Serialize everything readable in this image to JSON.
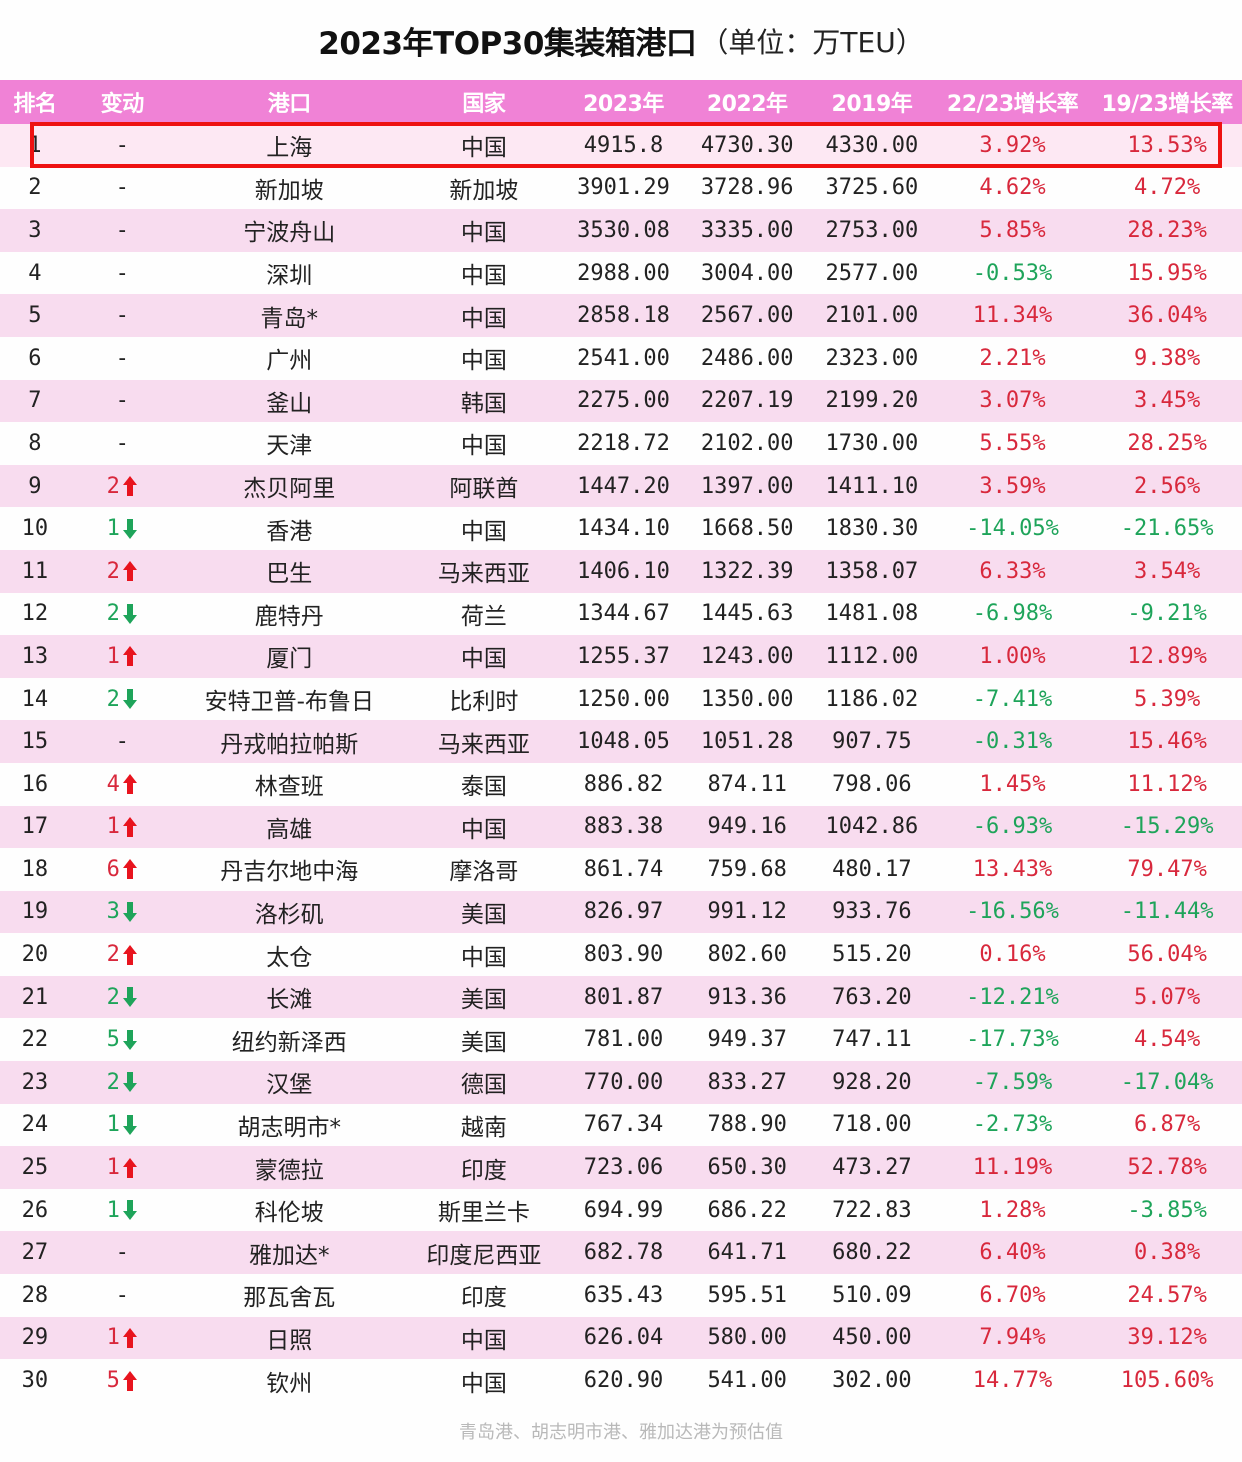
{
  "title": {
    "main": "2023年TOP30集装箱港口",
    "unit": "（单位：万TEU）"
  },
  "colors": {
    "header_bg": "#f082d6",
    "alt_row_bg": "#f8dcef",
    "positive": "#d8283c",
    "negative": "#1ea45a",
    "highlight_border": "#ee1111"
  },
  "header": {
    "rank": "排名",
    "change": "变动",
    "port": "港口",
    "country": "国家",
    "y2023": "2023年",
    "y2022": "2022年",
    "y2019": "2019年",
    "growth_22_23": "22/23增长率",
    "growth_19_23": "19/23增长率"
  },
  "rows": [
    {
      "rank": "1",
      "chg": "-",
      "dir": "none",
      "port": "上海",
      "country": "中国",
      "y2023": "4915.8",
      "y2022": "4730.30",
      "y2019": "4330.00",
      "g1": "3.92%",
      "g2": "13.53%"
    },
    {
      "rank": "2",
      "chg": "-",
      "dir": "none",
      "port": "新加坡",
      "country": "新加坡",
      "y2023": "3901.29",
      "y2022": "3728.96",
      "y2019": "3725.60",
      "g1": "4.62%",
      "g2": "4.72%"
    },
    {
      "rank": "3",
      "chg": "-",
      "dir": "none",
      "port": "宁波舟山",
      "country": "中国",
      "y2023": "3530.08",
      "y2022": "3335.00",
      "y2019": "2753.00",
      "g1": "5.85%",
      "g2": "28.23%"
    },
    {
      "rank": "4",
      "chg": "-",
      "dir": "none",
      "port": "深圳",
      "country": "中国",
      "y2023": "2988.00",
      "y2022": "3004.00",
      "y2019": "2577.00",
      "g1": "-0.53%",
      "g2": "15.95%"
    },
    {
      "rank": "5",
      "chg": "-",
      "dir": "none",
      "port": "青岛*",
      "country": "中国",
      "y2023": "2858.18",
      "y2022": "2567.00",
      "y2019": "2101.00",
      "g1": "11.34%",
      "g2": "36.04%"
    },
    {
      "rank": "6",
      "chg": "-",
      "dir": "none",
      "port": "广州",
      "country": "中国",
      "y2023": "2541.00",
      "y2022": "2486.00",
      "y2019": "2323.00",
      "g1": "2.21%",
      "g2": "9.38%"
    },
    {
      "rank": "7",
      "chg": "-",
      "dir": "none",
      "port": "釜山",
      "country": "韩国",
      "y2023": "2275.00",
      "y2022": "2207.19",
      "y2019": "2199.20",
      "g1": "3.07%",
      "g2": "3.45%"
    },
    {
      "rank": "8",
      "chg": "-",
      "dir": "none",
      "port": "天津",
      "country": "中国",
      "y2023": "2218.72",
      "y2022": "2102.00",
      "y2019": "1730.00",
      "g1": "5.55%",
      "g2": "28.25%"
    },
    {
      "rank": "9",
      "chg": "2",
      "dir": "up",
      "port": "杰贝阿里",
      "country": "阿联酋",
      "y2023": "1447.20",
      "y2022": "1397.00",
      "y2019": "1411.10",
      "g1": "3.59%",
      "g2": "2.56%"
    },
    {
      "rank": "10",
      "chg": "1",
      "dir": "down",
      "port": "香港",
      "country": "中国",
      "y2023": "1434.10",
      "y2022": "1668.50",
      "y2019": "1830.30",
      "g1": "-14.05%",
      "g2": "-21.65%"
    },
    {
      "rank": "11",
      "chg": "2",
      "dir": "up",
      "port": "巴生",
      "country": "马来西亚",
      "y2023": "1406.10",
      "y2022": "1322.39",
      "y2019": "1358.07",
      "g1": "6.33%",
      "g2": "3.54%"
    },
    {
      "rank": "12",
      "chg": "2",
      "dir": "down",
      "port": "鹿特丹",
      "country": "荷兰",
      "y2023": "1344.67",
      "y2022": "1445.63",
      "y2019": "1481.08",
      "g1": "-6.98%",
      "g2": "-9.21%"
    },
    {
      "rank": "13",
      "chg": "1",
      "dir": "up",
      "port": "厦门",
      "country": "中国",
      "y2023": "1255.37",
      "y2022": "1243.00",
      "y2019": "1112.00",
      "g1": "1.00%",
      "g2": "12.89%"
    },
    {
      "rank": "14",
      "chg": "2",
      "dir": "down",
      "port": "安特卫普-布鲁日",
      "country": "比利时",
      "y2023": "1250.00",
      "y2022": "1350.00",
      "y2019": "1186.02",
      "g1": "-7.41%",
      "g2": "5.39%"
    },
    {
      "rank": "15",
      "chg": "-",
      "dir": "none",
      "port": "丹戎帕拉帕斯",
      "country": "马来西亚",
      "y2023": "1048.05",
      "y2022": "1051.28",
      "y2019": "907.75",
      "g1": "-0.31%",
      "g2": "15.46%"
    },
    {
      "rank": "16",
      "chg": "4",
      "dir": "up",
      "port": "林查班",
      "country": "泰国",
      "y2023": "886.82",
      "y2022": "874.11",
      "y2019": "798.06",
      "g1": "1.45%",
      "g2": "11.12%"
    },
    {
      "rank": "17",
      "chg": "1",
      "dir": "up",
      "port": "高雄",
      "country": "中国",
      "y2023": "883.38",
      "y2022": "949.16",
      "y2019": "1042.86",
      "g1": "-6.93%",
      "g2": "-15.29%"
    },
    {
      "rank": "18",
      "chg": "6",
      "dir": "up",
      "port": "丹吉尔地中海",
      "country": "摩洛哥",
      "y2023": "861.74",
      "y2022": "759.68",
      "y2019": "480.17",
      "g1": "13.43%",
      "g2": "79.47%"
    },
    {
      "rank": "19",
      "chg": "3",
      "dir": "down",
      "port": "洛杉矶",
      "country": "美国",
      "y2023": "826.97",
      "y2022": "991.12",
      "y2019": "933.76",
      "g1": "-16.56%",
      "g2": "-11.44%"
    },
    {
      "rank": "20",
      "chg": "2",
      "dir": "up",
      "port": "太仓",
      "country": "中国",
      "y2023": "803.90",
      "y2022": "802.60",
      "y2019": "515.20",
      "g1": "0.16%",
      "g2": "56.04%"
    },
    {
      "rank": "21",
      "chg": "2",
      "dir": "down",
      "port": "长滩",
      "country": "美国",
      "y2023": "801.87",
      "y2022": "913.36",
      "y2019": "763.20",
      "g1": "-12.21%",
      "g2": "5.07%"
    },
    {
      "rank": "22",
      "chg": "5",
      "dir": "down",
      "port": "纽约新泽西",
      "country": "美国",
      "y2023": "781.00",
      "y2022": "949.37",
      "y2019": "747.11",
      "g1": "-17.73%",
      "g2": "4.54%"
    },
    {
      "rank": "23",
      "chg": "2",
      "dir": "down",
      "port": "汉堡",
      "country": "德国",
      "y2023": "770.00",
      "y2022": "833.27",
      "y2019": "928.20",
      "g1": "-7.59%",
      "g2": "-17.04%"
    },
    {
      "rank": "24",
      "chg": "1",
      "dir": "down",
      "port": "胡志明市*",
      "country": "越南",
      "y2023": "767.34",
      "y2022": "788.90",
      "y2019": "718.00",
      "g1": "-2.73%",
      "g2": "6.87%"
    },
    {
      "rank": "25",
      "chg": "1",
      "dir": "up",
      "port": "蒙德拉",
      "country": "印度",
      "y2023": "723.06",
      "y2022": "650.30",
      "y2019": "473.27",
      "g1": "11.19%",
      "g2": "52.78%"
    },
    {
      "rank": "26",
      "chg": "1",
      "dir": "down",
      "port": "科伦坡",
      "country": "斯里兰卡",
      "y2023": "694.99",
      "y2022": "686.22",
      "y2019": "722.83",
      "g1": "1.28%",
      "g2": "-3.85%"
    },
    {
      "rank": "27",
      "chg": "-",
      "dir": "none",
      "port": "雅加达*",
      "country": "印度尼西亚",
      "y2023": "682.78",
      "y2022": "641.71",
      "y2019": "680.22",
      "g1": "6.40%",
      "g2": "0.38%"
    },
    {
      "rank": "28",
      "chg": "-",
      "dir": "none",
      "port": "那瓦舍瓦",
      "country": "印度",
      "y2023": "635.43",
      "y2022": "595.51",
      "y2019": "510.09",
      "g1": "6.70%",
      "g2": "24.57%"
    },
    {
      "rank": "29",
      "chg": "1",
      "dir": "up",
      "port": "日照",
      "country": "中国",
      "y2023": "626.04",
      "y2022": "580.00",
      "y2019": "450.00",
      "g1": "7.94%",
      "g2": "39.12%"
    },
    {
      "rank": "30",
      "chg": "5",
      "dir": "up",
      "port": "钦州",
      "country": "中国",
      "y2023": "620.90",
      "y2022": "541.00",
      "y2019": "302.00",
      "g1": "14.77%",
      "g2": "105.60%"
    }
  ],
  "footnote": "青岛港、胡志明市港、雅加达港为预估值",
  "chart_data": {
    "type": "table",
    "title": "2023年TOP30集装箱港口（单位：万TEU）",
    "columns": [
      "排名",
      "变动",
      "港口",
      "国家",
      "2023年",
      "2022年",
      "2019年",
      "22/23增长率",
      "19/23增长率"
    ],
    "rows": [
      [
        1,
        "-",
        "上海",
        "中国",
        4915.8,
        4730.3,
        4330.0,
        "3.92%",
        "13.53%"
      ],
      [
        2,
        "-",
        "新加坡",
        "新加坡",
        3901.29,
        3728.96,
        3725.6,
        "4.62%",
        "4.72%"
      ],
      [
        3,
        "-",
        "宁波舟山",
        "中国",
        3530.08,
        3335.0,
        2753.0,
        "5.85%",
        "28.23%"
      ],
      [
        4,
        "-",
        "深圳",
        "中国",
        2988.0,
        3004.0,
        2577.0,
        "-0.53%",
        "15.95%"
      ],
      [
        5,
        "-",
        "青岛*",
        "中国",
        2858.18,
        2567.0,
        2101.0,
        "11.34%",
        "36.04%"
      ],
      [
        6,
        "-",
        "广州",
        "中国",
        2541.0,
        2486.0,
        2323.0,
        "2.21%",
        "9.38%"
      ],
      [
        7,
        "-",
        "釜山",
        "韩国",
        2275.0,
        2207.19,
        2199.2,
        "3.07%",
        "3.45%"
      ],
      [
        8,
        "-",
        "天津",
        "中国",
        2218.72,
        2102.0,
        1730.0,
        "5.55%",
        "28.25%"
      ],
      [
        9,
        "+2",
        "杰贝阿里",
        "阿联酋",
        1447.2,
        1397.0,
        1411.1,
        "3.59%",
        "2.56%"
      ],
      [
        10,
        "-1",
        "香港",
        "中国",
        1434.1,
        1668.5,
        1830.3,
        "-14.05%",
        "-21.65%"
      ],
      [
        11,
        "+2",
        "巴生",
        "马来西亚",
        1406.1,
        1322.39,
        1358.07,
        "6.33%",
        "3.54%"
      ],
      [
        12,
        "-2",
        "鹿特丹",
        "荷兰",
        1344.67,
        1445.63,
        1481.08,
        "-6.98%",
        "-9.21%"
      ],
      [
        13,
        "+1",
        "厦门",
        "中国",
        1255.37,
        1243.0,
        1112.0,
        "1.00%",
        "12.89%"
      ],
      [
        14,
        "-2",
        "安特卫普-布鲁日",
        "比利时",
        1250.0,
        1350.0,
        1186.02,
        "-7.41%",
        "5.39%"
      ],
      [
        15,
        "-",
        "丹戎帕拉帕斯",
        "马来西亚",
        1048.05,
        1051.28,
        907.75,
        "-0.31%",
        "15.46%"
      ],
      [
        16,
        "+4",
        "林查班",
        "泰国",
        886.82,
        874.11,
        798.06,
        "1.45%",
        "11.12%"
      ],
      [
        17,
        "+1",
        "高雄",
        "中国",
        883.38,
        949.16,
        1042.86,
        "-6.93%",
        "-15.29%"
      ],
      [
        18,
        "+6",
        "丹吉尔地中海",
        "摩洛哥",
        861.74,
        759.68,
        480.17,
        "13.43%",
        "79.47%"
      ],
      [
        19,
        "-3",
        "洛杉矶",
        "美国",
        826.97,
        991.12,
        933.76,
        "-16.56%",
        "-11.44%"
      ],
      [
        20,
        "+2",
        "太仓",
        "中国",
        803.9,
        802.6,
        515.2,
        "0.16%",
        "56.04%"
      ],
      [
        21,
        "-2",
        "长滩",
        "美国",
        801.87,
        913.36,
        763.2,
        "-12.21%",
        "5.07%"
      ],
      [
        22,
        "-5",
        "纽约新泽西",
        "美国",
        781.0,
        949.37,
        747.11,
        "-17.73%",
        "4.54%"
      ],
      [
        23,
        "-2",
        "汉堡",
        "德国",
        770.0,
        833.27,
        928.2,
        "-7.59%",
        "-17.04%"
      ],
      [
        24,
        "-1",
        "胡志明市*",
        "越南",
        767.34,
        788.9,
        718.0,
        "-2.73%",
        "6.87%"
      ],
      [
        25,
        "+1",
        "蒙德拉",
        "印度",
        723.06,
        650.3,
        473.27,
        "11.19%",
        "52.78%"
      ],
      [
        26,
        "-1",
        "科伦坡",
        "斯里兰卡",
        694.99,
        686.22,
        722.83,
        "1.28%",
        "-3.85%"
      ],
      [
        27,
        "-",
        "雅加达*",
        "印度尼西亚",
        682.78,
        641.71,
        680.22,
        "6.40%",
        "0.38%"
      ],
      [
        28,
        "-",
        "那瓦舍瓦",
        "印度",
        635.43,
        595.51,
        510.09,
        "6.70%",
        "24.57%"
      ],
      [
        29,
        "+1",
        "日照",
        "中国",
        626.04,
        580.0,
        450.0,
        "7.94%",
        "39.12%"
      ],
      [
        30,
        "+5",
        "钦州",
        "中国",
        620.9,
        541.0,
        302.0,
        "14.77%",
        "105.60%"
      ]
    ],
    "annotations": [
      "青岛港、胡志明市港、雅加达港为预估值"
    ],
    "highlighted_row": 1
  }
}
